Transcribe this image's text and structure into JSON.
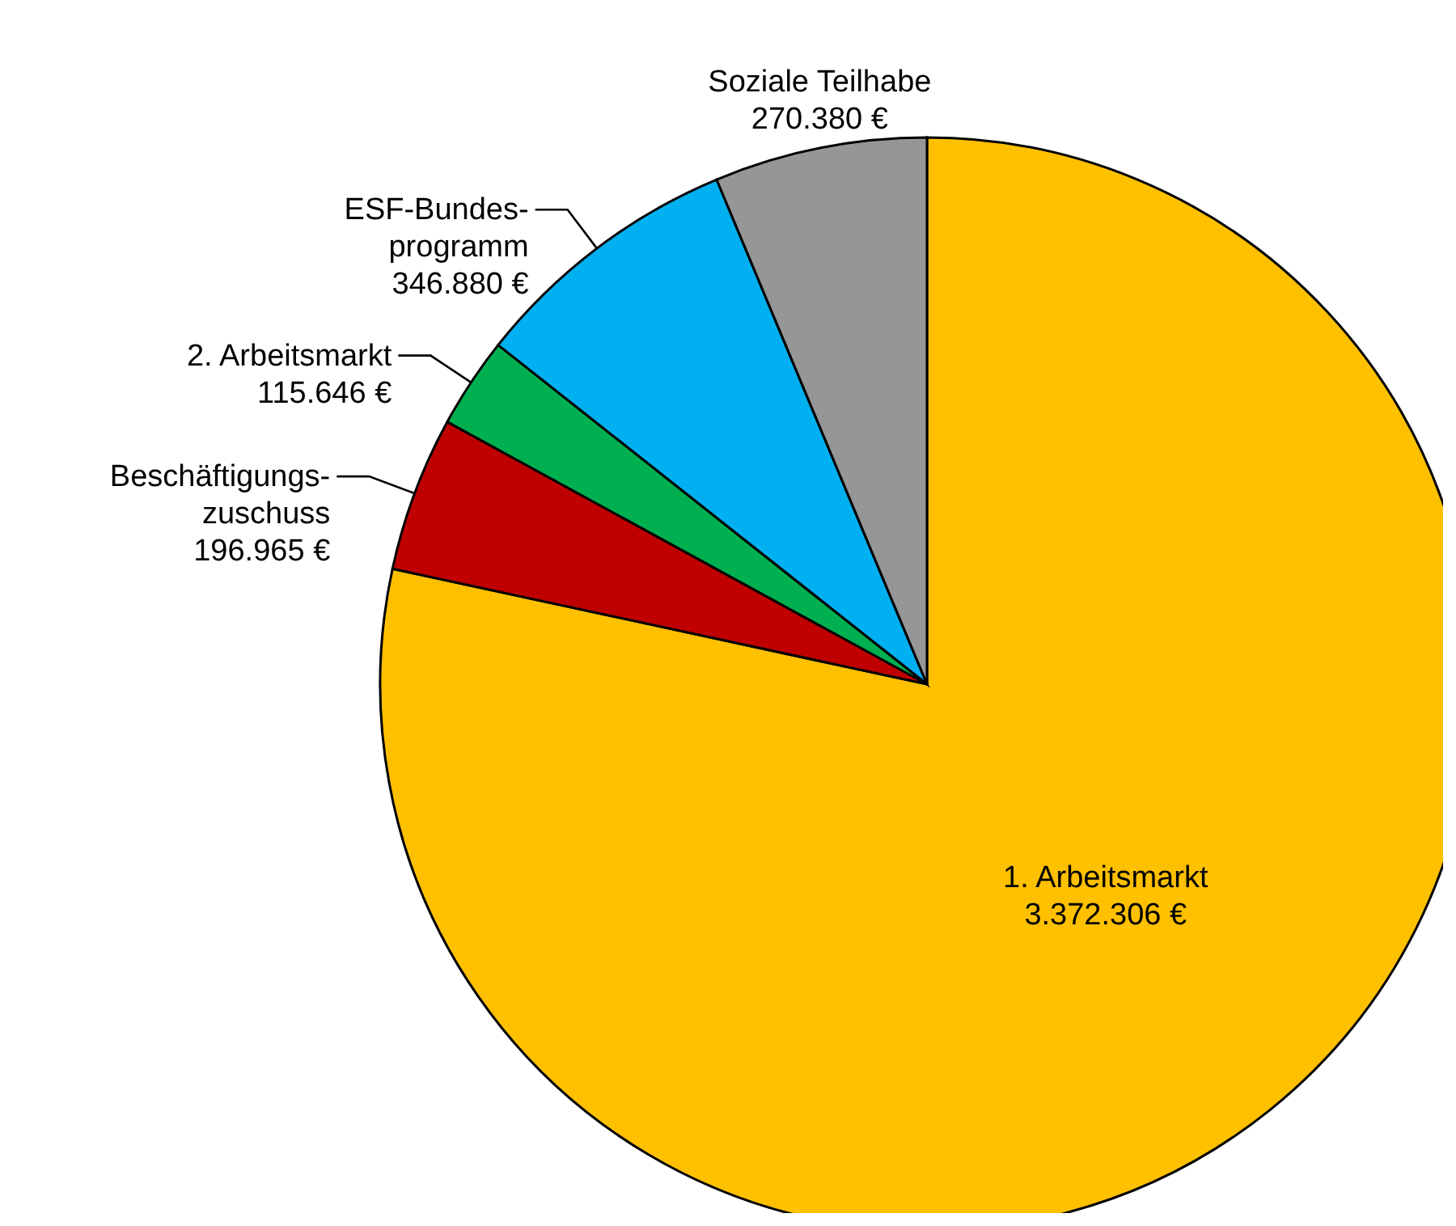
{
  "chart_data": {
    "type": "pie",
    "categories": [
      "1. Arbeitsmarkt",
      "Beschäftigungs-\nzuschuss",
      "2. Arbeitsmarkt",
      "ESF-Bundes-\nprogramm",
      "Soziale Teilhabe"
    ],
    "values": [
      3372306,
      196965,
      115646,
      346880,
      270380
    ],
    "colors": [
      "#ffc000",
      "#c00000",
      "#00b050",
      "#00b0f0",
      "#969696"
    ],
    "value_labels": [
      "3.372.306 €",
      "196.965 €",
      "115.646 €",
      "346.880 €",
      "270.380 €"
    ],
    "legend": false
  }
}
